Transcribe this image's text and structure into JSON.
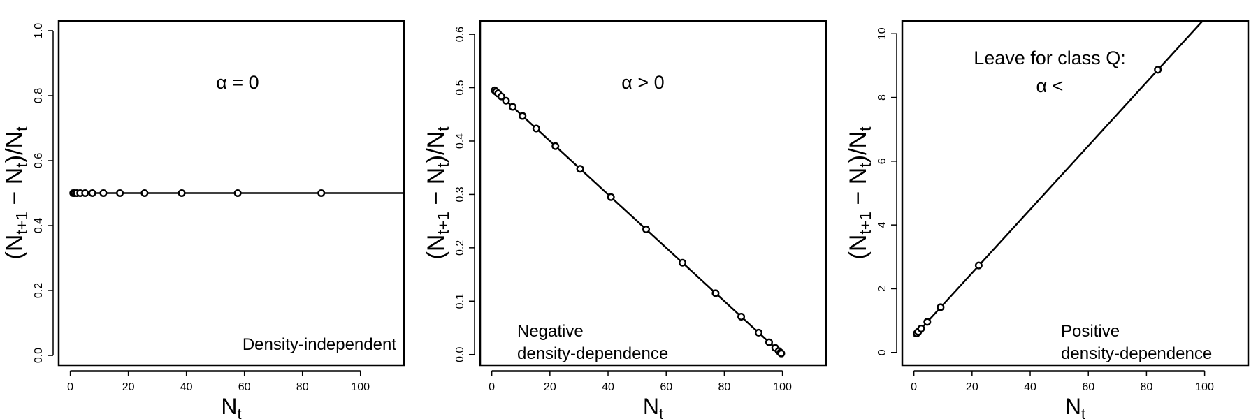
{
  "chart_data": [
    {
      "type": "scatter",
      "panel": "left",
      "xlabel": {
        "main": "N",
        "sub": "t"
      },
      "ylabel": {
        "pre": "(N",
        "s1": "t+1",
        "mid": " − N",
        "s2": "t",
        "post": ")/N",
        "s3": "t"
      },
      "annotation": [
        "α = 0"
      ],
      "corner_text": [
        "Density-independent"
      ],
      "xlim": [
        -4,
        115
      ],
      "ylim": [
        -0.03,
        1.03
      ],
      "xticks": [
        0,
        20,
        40,
        60,
        80,
        100
      ],
      "yticks": [
        0.0,
        0.2,
        0.4,
        0.6,
        0.8,
        1.0
      ],
      "ytick_labels": [
        "0.0",
        "0.2",
        "0.4",
        "0.6",
        "0.8",
        "1.0"
      ],
      "line": {
        "x": [
          0,
          115
        ],
        "y": [
          0.5,
          0.5
        ]
      },
      "points": {
        "x": [
          1,
          1.5,
          2.25,
          3.4,
          5.1,
          7.6,
          11.4,
          17.1,
          25.6,
          38.4,
          57.7,
          86.5
        ],
        "y": [
          0.5,
          0.5,
          0.5,
          0.5,
          0.5,
          0.5,
          0.5,
          0.5,
          0.5,
          0.5,
          0.5,
          0.5
        ]
      }
    },
    {
      "type": "scatter",
      "panel": "middle",
      "xlabel": {
        "main": "N",
        "sub": "t"
      },
      "ylabel": {
        "pre": "(N",
        "s1": "t+1",
        "mid": " − N",
        "s2": "t",
        "post": ")/N",
        "s3": "t"
      },
      "annotation": [
        "α > 0"
      ],
      "corner_text": [
        "Negative",
        "density-dependence"
      ],
      "xlim": [
        -4,
        115
      ],
      "ylim": [
        -0.02,
        0.625
      ],
      "xticks": [
        0,
        20,
        40,
        60,
        80,
        100
      ],
      "yticks": [
        0.0,
        0.1,
        0.2,
        0.3,
        0.4,
        0.5,
        0.6
      ],
      "ytick_labels": [
        "0.0",
        "0.1",
        "0.2",
        "0.3",
        "0.4",
        "0.5",
        "0.6"
      ],
      "line": {
        "x": [
          1,
          100
        ],
        "y": [
          0.495,
          0.0
        ]
      },
      "points": {
        "x": [
          1,
          1.5,
          2.2,
          3.3,
          4.9,
          7.2,
          10.6,
          15.3,
          21.9,
          30.4,
          41.0,
          53.1,
          65.6,
          77.0,
          85.8,
          91.8,
          95.4,
          97.5,
          98.7,
          99.3,
          99.6
        ],
        "y": [
          0.495,
          0.4925,
          0.489,
          0.4835,
          0.4755,
          0.464,
          0.447,
          0.4235,
          0.3905,
          0.348,
          0.295,
          0.2345,
          0.172,
          0.115,
          0.071,
          0.041,
          0.023,
          0.0125,
          0.0065,
          0.0035,
          0.002
        ]
      }
    },
    {
      "type": "scatter",
      "panel": "right",
      "xlabel": {
        "main": "N",
        "sub": "t"
      },
      "ylabel": {
        "pre": "(N",
        "s1": "t+1",
        "mid": " − N",
        "s2": "t",
        "post": ")/N",
        "s3": "t"
      },
      "annotation": [
        "Leave for class Q:",
        "α <"
      ],
      "corner_text": [
        "Positive",
        "density-dependence"
      ],
      "xlim": [
        -4,
        115
      ],
      "ylim": [
        -0.4,
        10.4
      ],
      "xticks": [
        0,
        20,
        40,
        60,
        80,
        100
      ],
      "yticks": [
        0,
        2,
        4,
        6,
        8,
        10
      ],
      "ytick_labels": [
        "0",
        "2",
        "4",
        "6",
        "8",
        "10"
      ],
      "line": {
        "x": [
          0,
          99.3
        ],
        "y": [
          0.5,
          10.4
        ]
      },
      "points": {
        "x": [
          1,
          1.5,
          2.5,
          4.6,
          9.2,
          22.3,
          83.9
        ],
        "y": [
          0.6,
          0.65,
          0.75,
          0.96,
          1.42,
          2.73,
          8.87
        ]
      }
    }
  ]
}
